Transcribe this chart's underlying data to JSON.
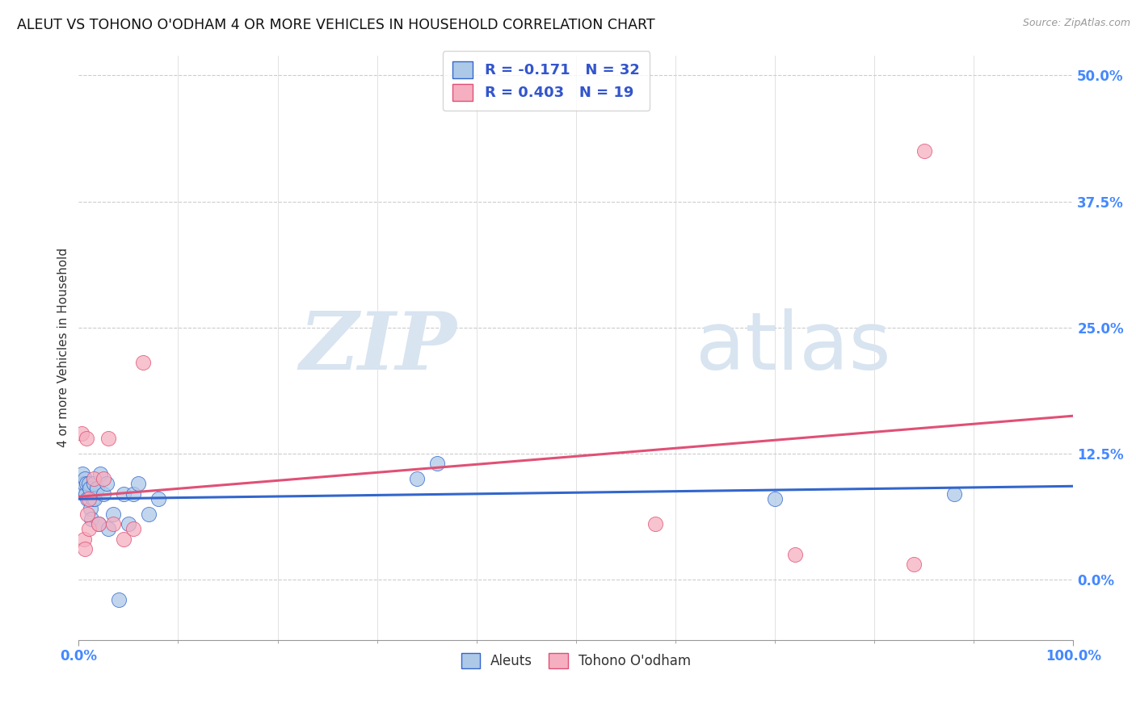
{
  "title": "ALEUT VS TOHONO O'ODHAM 4 OR MORE VEHICLES IN HOUSEHOLD CORRELATION CHART",
  "source": "Source: ZipAtlas.com",
  "ylabel_label": "4 or more Vehicles in Household",
  "xmin": 0.0,
  "xmax": 1.0,
  "ymin": -0.06,
  "ymax": 0.52,
  "aleuts_R": -0.171,
  "aleuts_N": 32,
  "tohono_R": 0.403,
  "tohono_N": 19,
  "legend_labels": [
    "Aleuts",
    "Tohono O'odham"
  ],
  "aleuts_color": "#adc9e8",
  "tohono_color": "#f5afc0",
  "aleuts_line_color": "#3366cc",
  "tohono_line_color": "#e05075",
  "background_color": "#ffffff",
  "watermark_zip": "ZIP",
  "watermark_atlas": "atlas",
  "watermark_color": "#d8e4f0",
  "grid_color": "#cccccc",
  "title_fontsize": 12.5,
  "axis_label_fontsize": 11,
  "tick_fontsize": 12,
  "tick_color": "#4488ff",
  "aleuts_x": [
    0.003,
    0.004,
    0.005,
    0.006,
    0.007,
    0.008,
    0.009,
    0.01,
    0.011,
    0.012,
    0.013,
    0.014,
    0.015,
    0.016,
    0.018,
    0.02,
    0.022,
    0.025,
    0.028,
    0.03,
    0.035,
    0.04,
    0.045,
    0.05,
    0.055,
    0.06,
    0.07,
    0.08,
    0.34,
    0.36,
    0.7,
    0.88
  ],
  "aleuts_y": [
    0.09,
    0.105,
    0.095,
    0.1,
    0.085,
    0.095,
    0.08,
    0.095,
    0.09,
    0.07,
    0.06,
    0.08,
    0.095,
    0.08,
    0.09,
    0.055,
    0.105,
    0.085,
    0.095,
    0.05,
    0.065,
    -0.02,
    0.085,
    0.055,
    0.085,
    0.095,
    0.065,
    0.08,
    0.1,
    0.115,
    0.08,
    0.085
  ],
  "tohono_x": [
    0.003,
    0.005,
    0.006,
    0.008,
    0.009,
    0.01,
    0.015,
    0.02,
    0.025,
    0.03,
    0.035,
    0.045,
    0.055,
    0.065,
    0.58,
    0.72,
    0.84,
    0.85,
    0.01
  ],
  "tohono_y": [
    0.145,
    0.04,
    0.03,
    0.14,
    0.065,
    0.05,
    0.1,
    0.055,
    0.1,
    0.14,
    0.055,
    0.04,
    0.05,
    0.215,
    0.055,
    0.025,
    0.015,
    0.425,
    0.08
  ]
}
